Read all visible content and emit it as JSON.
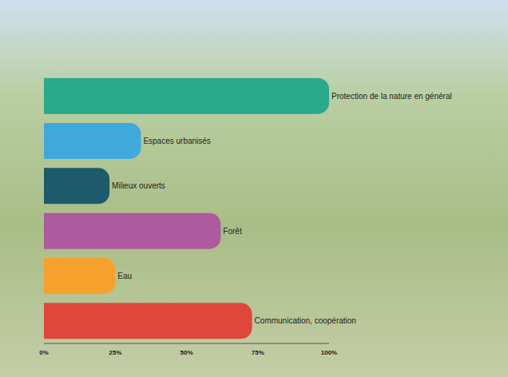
{
  "chart_data": {
    "type": "bar",
    "orientation": "horizontal",
    "categories": [
      "Protection de la nature en général",
      "Espaces urbanisés",
      "Milieux ouverts",
      "Forêt",
      "Eau",
      "Communication, coopération"
    ],
    "values": [
      100,
      34,
      23,
      62,
      25,
      73
    ],
    "colors": [
      "#2aa98b",
      "#3fa8dc",
      "#1c5a6c",
      "#ae5a9f",
      "#f6a12c",
      "#e0473c"
    ],
    "xlim": [
      0,
      100
    ],
    "xticks": [
      {
        "value": 0,
        "label": "0%"
      },
      {
        "value": 25,
        "label": "25%"
      },
      {
        "value": 50,
        "label": "50%"
      },
      {
        "value": 75,
        "label": "75%"
      },
      {
        "value": 100,
        "label": "100%"
      }
    ],
    "tick_labels": "x",
    "grid": false
  }
}
